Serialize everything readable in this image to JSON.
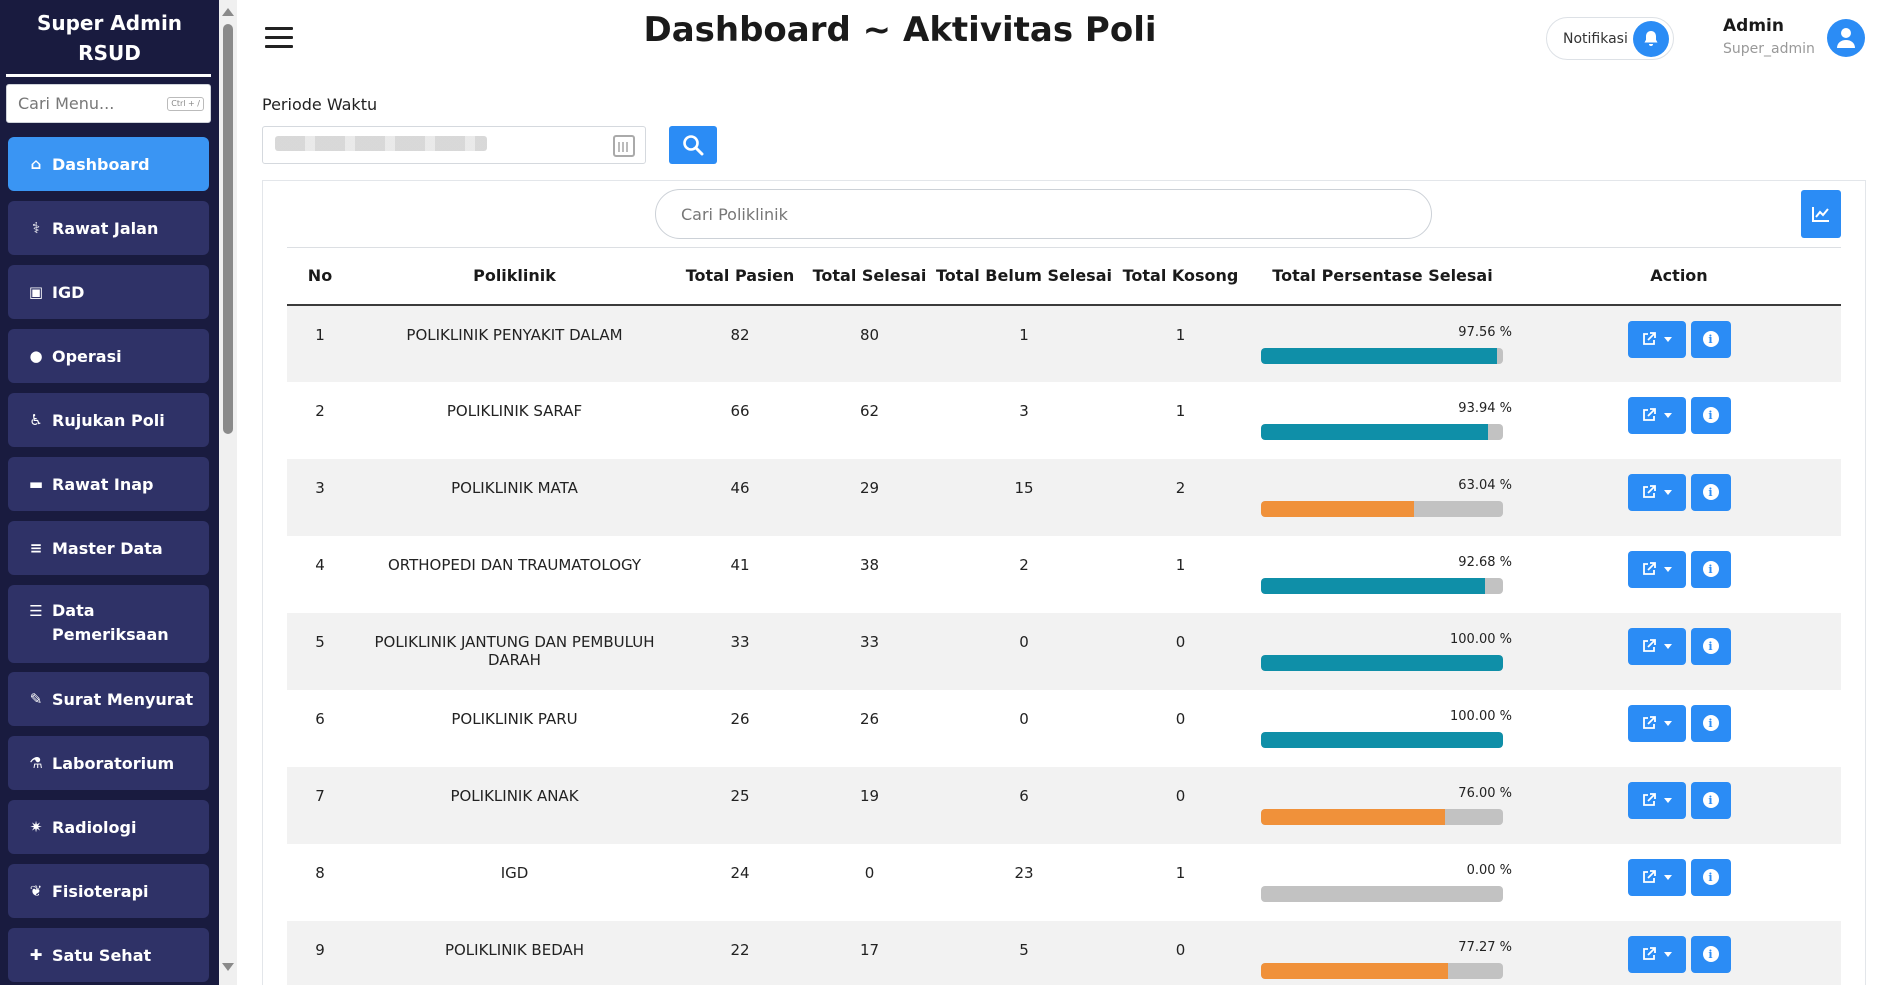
{
  "sidebar": {
    "brand_line1": "Super Admin",
    "brand_line2": "RSUD",
    "search_placeholder": "Cari Menu...",
    "search_shortcut": "Ctrl + /",
    "items": [
      {
        "label": "Dashboard",
        "icon": "home-icon",
        "active": true
      },
      {
        "label": "Rawat Jalan",
        "icon": "stethoscope-icon"
      },
      {
        "label": "IGD",
        "icon": "ambulance-icon"
      },
      {
        "label": "Operasi",
        "icon": "surgery-icon"
      },
      {
        "label": "Rujukan Poli",
        "icon": "referral-icon"
      },
      {
        "label": "Rawat Inap",
        "icon": "bed-icon"
      },
      {
        "label": "Master Data",
        "icon": "database-icon"
      },
      {
        "label": "Data Pemeriksaan",
        "icon": "list-icon"
      },
      {
        "label": "Surat Menyurat",
        "icon": "letter-icon"
      },
      {
        "label": "Laboratorium",
        "icon": "flask-icon"
      },
      {
        "label": "Radiologi",
        "icon": "radiation-icon"
      },
      {
        "label": "Fisioterapi",
        "icon": "spa-icon"
      },
      {
        "label": "Satu Sehat",
        "icon": "puzzle-icon"
      }
    ]
  },
  "header": {
    "title": "Dashboard ~ Aktivitas Poli",
    "notif_label": "Notifikasi",
    "user_name": "Admin",
    "user_role": "Super_admin"
  },
  "filter": {
    "periode_label": "Periode Waktu"
  },
  "table": {
    "search_placeholder": "Cari Poliklinik",
    "columns": [
      "No",
      "Poliklinik",
      "Total Pasien",
      "Total Selesai",
      "Total Belum Selesai",
      "Total Kosong",
      "Total Persentase Selesai",
      "Action"
    ],
    "rows": [
      {
        "no": "1",
        "poli": "POLIKLINIK PENYAKIT DALAM",
        "pasien": "82",
        "selesai": "80",
        "belum": "1",
        "kosong": "1",
        "pct_text": "97.56 %",
        "pct": 97.56
      },
      {
        "no": "2",
        "poli": "POLIKLINIK SARAF",
        "pasien": "66",
        "selesai": "62",
        "belum": "3",
        "kosong": "1",
        "pct_text": "93.94 %",
        "pct": 93.94
      },
      {
        "no": "3",
        "poli": "POLIKLINIK MATA",
        "pasien": "46",
        "selesai": "29",
        "belum": "15",
        "kosong": "2",
        "pct_text": "63.04 %",
        "pct": 63.04
      },
      {
        "no": "4",
        "poli": "ORTHOPEDI DAN TRAUMATOLOGY",
        "pasien": "41",
        "selesai": "38",
        "belum": "2",
        "kosong": "1",
        "pct_text": "92.68 %",
        "pct": 92.68
      },
      {
        "no": "5",
        "poli": "POLIKLINIK JANTUNG DAN PEMBULUH DARAH",
        "pasien": "33",
        "selesai": "33",
        "belum": "0",
        "kosong": "0",
        "pct_text": "100.00 %",
        "pct": 100
      },
      {
        "no": "6",
        "poli": "POLIKLINIK PARU",
        "pasien": "26",
        "selesai": "26",
        "belum": "0",
        "kosong": "0",
        "pct_text": "100.00 %",
        "pct": 100
      },
      {
        "no": "7",
        "poli": "POLIKLINIK ANAK",
        "pasien": "25",
        "selesai": "19",
        "belum": "6",
        "kosong": "0",
        "pct_text": "76.00 %",
        "pct": 76
      },
      {
        "no": "8",
        "poli": "IGD",
        "pasien": "24",
        "selesai": "0",
        "belum": "23",
        "kosong": "1",
        "pct_text": "0.00 %",
        "pct": 0
      },
      {
        "no": "9",
        "poli": "POLIKLINIK BEDAH",
        "pasien": "22",
        "selesai": "17",
        "belum": "5",
        "kosong": "0",
        "pct_text": "77.27 %",
        "pct": 77.27
      }
    ]
  },
  "colors": {
    "accent": "#2b8cf5",
    "sidebar_bg": "#191b3f",
    "menu_bg": "#2f3267",
    "bar_high": "#0f8fa8",
    "bar_mid": "#f0913a",
    "bar_track": "#c2c2c2"
  }
}
